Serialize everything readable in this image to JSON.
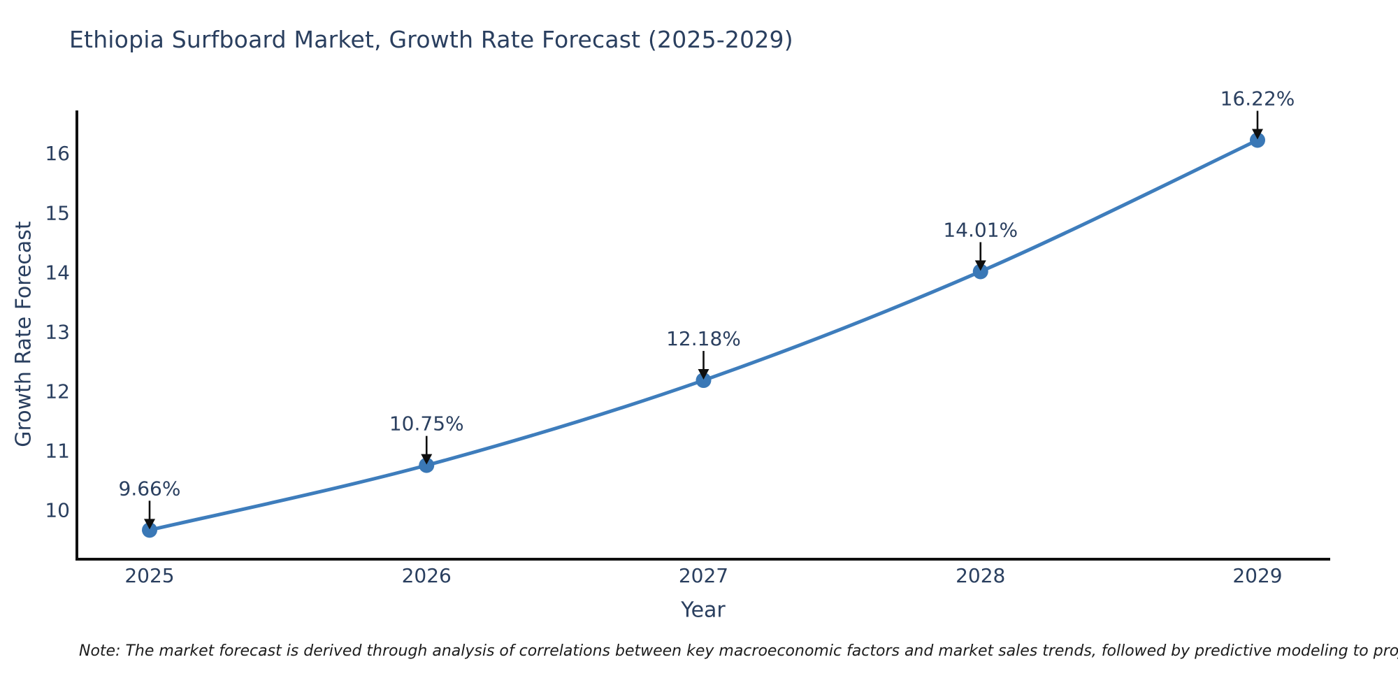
{
  "title": "Ethiopia Surfboard Market, Growth Rate Forecast (2025-2029)",
  "note": "Note: The market forecast is derived through analysis of correlations between key macroeconomic factors and market sales trends, followed by predictive modeling to project future sales",
  "colors": {
    "title_text": "#2a3f5f",
    "tick_text": "#2a3f5f",
    "annotation_text": "#2a3f5f",
    "note_text": "#1c1c1c",
    "axis_line": "#0f0f0f",
    "series_line": "#3e7dbc",
    "marker_fill": "#3a78b6",
    "arrow": "#0f0f0f",
    "background": "#ffffff"
  },
  "chart_data": {
    "type": "line",
    "title": "Ethiopia Surfboard Market, Growth Rate Forecast (2025-2029)",
    "xlabel": "Year",
    "ylabel": "Growth Rate Forecast",
    "categories": [
      "2025",
      "2026",
      "2027",
      "2028",
      "2029"
    ],
    "values": [
      9.66,
      10.75,
      12.18,
      14.01,
      16.22
    ],
    "point_labels": [
      "9.66%",
      "10.75%",
      "12.18%",
      "14.01%",
      "16.22%"
    ],
    "yticks": [
      10,
      11,
      12,
      13,
      14,
      15,
      16
    ],
    "ylim": [
      9.17,
      16.72
    ],
    "grid": false,
    "legend": "none",
    "marker": "circle",
    "annotation_arrows": "down-to-point"
  }
}
